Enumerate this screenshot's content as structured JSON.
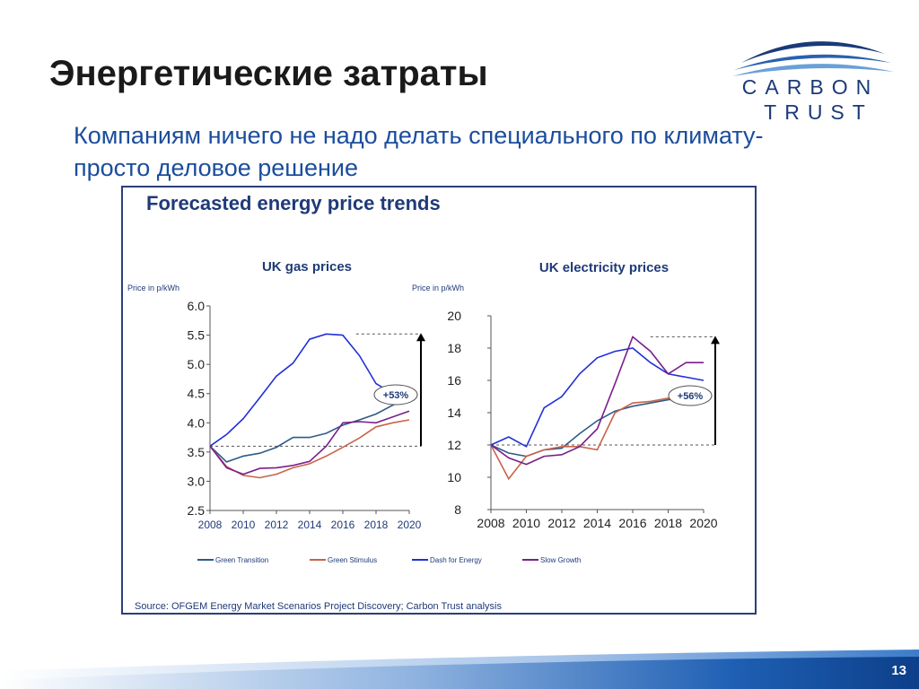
{
  "slide": {
    "title": "Энергетические затраты",
    "subtitle": "Компаниям ничего не надо делать специального по климату-  просто деловое решение",
    "page_number": "13"
  },
  "logo": {
    "line1": "CARBON",
    "line2": "TRUST",
    "color": "#1b3a7a"
  },
  "figure": {
    "title": "Forecasted energy price trends",
    "source": "Source: OFGEM Energy Market Scenarios Project Discovery; Carbon Trust analysis",
    "legend": [
      {
        "name": "Green Transition",
        "color": "#2e5a88"
      },
      {
        "name": "Green Stimulus",
        "color": "#c8644a"
      },
      {
        "name": "Dash for Energy",
        "color": "#1f2fd8"
      },
      {
        "name": "Slow Growth",
        "color": "#7a1f8a"
      }
    ]
  },
  "chart_data": [
    {
      "type": "line",
      "title": "UK gas prices",
      "ylabel": "Price in p/kWh",
      "xlabel": "",
      "x": [
        2008,
        2009,
        2010,
        2011,
        2012,
        2013,
        2014,
        2015,
        2016,
        2017,
        2018,
        2019,
        2020
      ],
      "xticks": [
        "2008",
        "2010",
        "2012",
        "2014",
        "2016",
        "2018",
        "2020"
      ],
      "yticks": [
        "2.5",
        "3.0",
        "3.5",
        "4.0",
        "4.5",
        "5.0",
        "5.5",
        "6.0"
      ],
      "ylim": [
        2.5,
        6.0
      ],
      "xlim": [
        2008,
        2020
      ],
      "series": [
        {
          "name": "Green Transition",
          "values": [
            3.6,
            3.33,
            3.43,
            3.48,
            3.58,
            3.75,
            3.75,
            3.82,
            3.96,
            4.05,
            4.15,
            4.3,
            4.42
          ]
        },
        {
          "name": "Green Stimulus",
          "values": [
            3.6,
            3.25,
            3.1,
            3.06,
            3.12,
            3.23,
            3.3,
            3.43,
            3.58,
            3.74,
            3.93,
            4.0,
            4.05
          ]
        },
        {
          "name": "Dash for Energy",
          "values": [
            3.6,
            3.8,
            4.07,
            4.43,
            4.8,
            5.02,
            5.43,
            5.52,
            5.5,
            5.15,
            4.67,
            4.5,
            4.4
          ]
        },
        {
          "name": "Slow Growth",
          "values": [
            3.6,
            3.23,
            3.12,
            3.22,
            3.23,
            3.27,
            3.34,
            3.6,
            4.0,
            4.02,
            4.0,
            4.1,
            4.2
          ]
        }
      ],
      "annotation": {
        "label": "+53%",
        "from": 3.6,
        "to": 5.52
      }
    },
    {
      "type": "line",
      "title": "UK electricity prices",
      "ylabel": "Price in p/kWh",
      "xlabel": "",
      "x": [
        2008,
        2009,
        2010,
        2011,
        2012,
        2013,
        2014,
        2015,
        2016,
        2017,
        2018,
        2019,
        2020
      ],
      "xticks": [
        "2008",
        "2010",
        "2012",
        "2014",
        "2016",
        "2018",
        "2020"
      ],
      "yticks": [
        "8",
        "10",
        "12",
        "14",
        "16",
        "18",
        "20"
      ],
      "ylim": [
        8,
        20
      ],
      "xlim": [
        2008,
        2020
      ],
      "series": [
        {
          "name": "Green Transition",
          "values": [
            12.0,
            11.5,
            11.3,
            11.7,
            11.8,
            12.7,
            13.5,
            14.1,
            14.4,
            14.6,
            14.8,
            14.9,
            15.0
          ]
        },
        {
          "name": "Green Stimulus",
          "values": [
            12.0,
            9.9,
            11.3,
            11.7,
            11.9,
            11.9,
            11.7,
            14.0,
            14.6,
            14.7,
            14.9,
            14.8,
            14.9
          ]
        },
        {
          "name": "Dash for Energy",
          "values": [
            12.0,
            12.5,
            11.9,
            14.3,
            15.0,
            16.4,
            17.4,
            17.8,
            18.0,
            17.1,
            16.4,
            16.2,
            16.0
          ]
        },
        {
          "name": "Slow Growth",
          "values": [
            12.0,
            11.2,
            10.8,
            11.3,
            11.4,
            11.9,
            13.0,
            15.8,
            18.7,
            17.8,
            16.4,
            17.1,
            17.1
          ]
        }
      ],
      "annotation": {
        "label": "+56%",
        "from": 12.0,
        "to": 18.7
      }
    }
  ]
}
